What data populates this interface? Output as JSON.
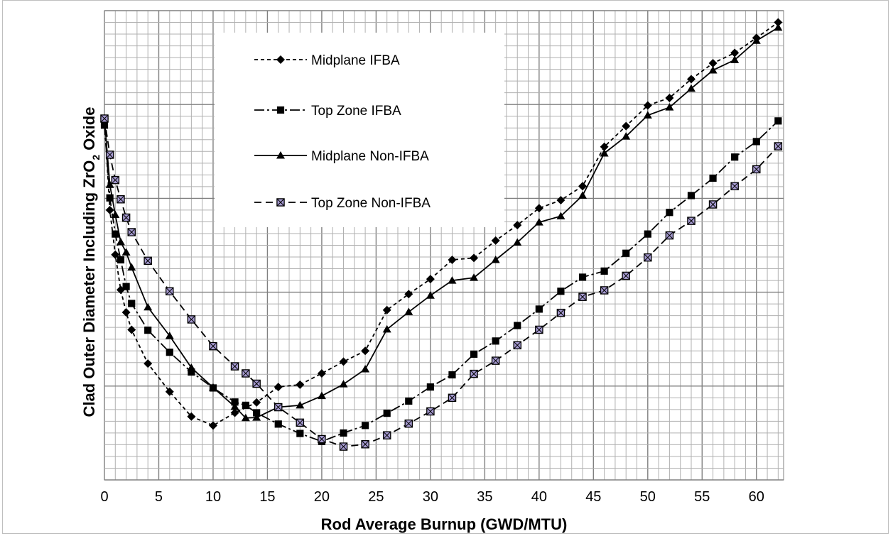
{
  "chart_data": {
    "type": "line",
    "title": "",
    "xlabel": "Rod Average Burnup (GWD/MTU)",
    "ylabel_parts": {
      "pre": "Clad Outer Diameter Including ZrO",
      "sub": "2",
      "post": " Oxide"
    },
    "xlim": [
      0,
      62.5
    ],
    "ylim": [
      0,
      100
    ],
    "x_ticks": [
      0,
      5,
      10,
      15,
      20,
      25,
      30,
      35,
      40,
      45,
      50,
      55,
      60
    ],
    "x_tick_labels": [
      "0",
      "5",
      "10",
      "15",
      "20",
      "25",
      "30",
      "35",
      "40",
      "45",
      "50",
      "55",
      "60"
    ],
    "grid": true,
    "legend_position": "top-center",
    "series": [
      {
        "name": "Midplane IFBA",
        "marker": "diamond",
        "dash": "5,4",
        "fill": "#000000",
        "x": [
          0,
          0.5,
          1,
          1.5,
          2,
          2.5,
          4,
          6,
          8,
          10,
          12,
          14,
          16,
          18,
          20,
          22,
          24,
          26,
          28,
          30,
          32,
          34,
          36,
          38,
          40,
          42,
          44,
          46,
          48,
          50,
          52,
          54,
          56,
          58,
          60,
          62
        ],
        "y": [
          77,
          57.5,
          48,
          40.5,
          35.7,
          32,
          24.8,
          18.8,
          13.5,
          11.6,
          14.3,
          16.5,
          19.8,
          20.3,
          22.7,
          25.2,
          27.5,
          36.2,
          39.6,
          42.8,
          46.9,
          47.3,
          51,
          54.3,
          57.9,
          59.6,
          62.6,
          71,
          75.4,
          79.8,
          81.4,
          85.4,
          88.8,
          91,
          94.2,
          97.5
        ]
      },
      {
        "name": "Top Zone IFBA",
        "marker": "square",
        "dash": "14,4,3,4",
        "fill": "#000000",
        "x": [
          0,
          0.5,
          1,
          1.5,
          2,
          2.5,
          4,
          6,
          8,
          10,
          12,
          13,
          14,
          16,
          18,
          20,
          22,
          24,
          26,
          28,
          30,
          32,
          34,
          36,
          38,
          40,
          42,
          44,
          46,
          48,
          50,
          52,
          54,
          56,
          58,
          60,
          62
        ],
        "y": [
          75.6,
          60.1,
          52.4,
          46.9,
          41.2,
          37.6,
          31.9,
          27.2,
          23,
          19.6,
          16.6,
          15.9,
          14.3,
          11.9,
          9.9,
          8.2,
          10,
          11.6,
          14.2,
          16.8,
          19.8,
          22.4,
          26.8,
          29.6,
          32.9,
          36.4,
          40.2,
          43.2,
          44.5,
          48.3,
          52.4,
          57,
          60.6,
          64.3,
          68.8,
          72.1,
          76.5
        ]
      },
      {
        "name": "Midplane Non-IFBA",
        "marker": "triangle",
        "dash": "",
        "fill": "#000000",
        "x": [
          0,
          0.5,
          1,
          1.5,
          2,
          2.5,
          4,
          6,
          8,
          10,
          12,
          13,
          14,
          16,
          18,
          20,
          22,
          24,
          26,
          28,
          30,
          32,
          34,
          36,
          38,
          40,
          42,
          44,
          46,
          48,
          50,
          52,
          54,
          56,
          58,
          60,
          62
        ],
        "y": [
          77,
          62.9,
          56.5,
          50.7,
          48.5,
          45.3,
          36.8,
          30.7,
          23.9,
          19.7,
          15.6,
          13.2,
          13.3,
          15.5,
          15.9,
          17.9,
          20.4,
          23.6,
          32.1,
          35.8,
          39.3,
          42.5,
          43.1,
          46.9,
          50.6,
          54.9,
          56.2,
          60.6,
          69.6,
          73.2,
          77.7,
          79.4,
          83.4,
          87.3,
          89.5,
          93.6,
          96.4
        ]
      },
      {
        "name": "Top Zone Non-IFBA",
        "marker": "xsquare",
        "dash": "10,6",
        "fill": "#a59ad0",
        "x": [
          0,
          0.5,
          1,
          1.5,
          2,
          2.5,
          4,
          6,
          8,
          10,
          12,
          13,
          14,
          16,
          18,
          20,
          22,
          24,
          26,
          28,
          30,
          32,
          34,
          36,
          38,
          40,
          42,
          44,
          46,
          48,
          50,
          52,
          54,
          56,
          58,
          60,
          62
        ],
        "y": [
          77,
          69.3,
          63.9,
          59.8,
          55.9,
          52.8,
          46.7,
          40.2,
          34.2,
          28.5,
          24.2,
          22.7,
          20.5,
          15.5,
          12.2,
          8.7,
          7.1,
          7.6,
          9.5,
          12,
          14.6,
          17.5,
          22.6,
          25.4,
          28.7,
          32,
          35.6,
          39,
          40.4,
          43.5,
          47.4,
          52.1,
          55.2,
          58.7,
          62.6,
          66.2,
          71.1
        ]
      }
    ]
  }
}
